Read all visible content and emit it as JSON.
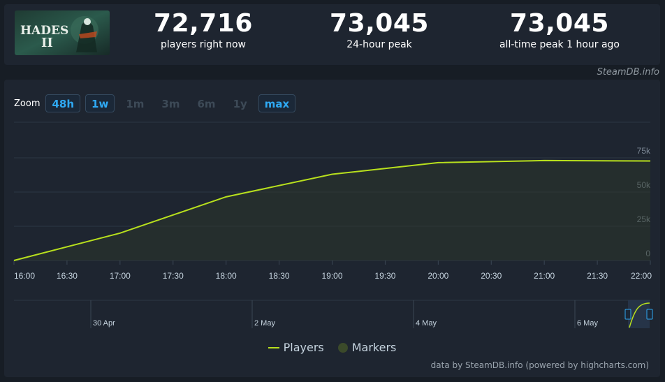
{
  "stats": {
    "current": {
      "value": "72,716",
      "label": "players right now"
    },
    "peak24": {
      "value": "73,045",
      "label": "24-hour peak"
    },
    "alltime": {
      "value": "73,045",
      "label": "all-time peak 1 hour ago"
    }
  },
  "game_logo": {
    "text": "HADES",
    "numeral": "II"
  },
  "steamdb_credit": "SteamDB.info",
  "zoom": {
    "label": "Zoom",
    "buttons": [
      {
        "label": "48h",
        "active": true
      },
      {
        "label": "1w",
        "active": true
      },
      {
        "label": "1m",
        "active": false
      },
      {
        "label": "3m",
        "active": false
      },
      {
        "label": "6m",
        "active": false
      },
      {
        "label": "1y",
        "active": false
      },
      {
        "label": "max",
        "active": true
      }
    ]
  },
  "legend": {
    "players": "Players",
    "markers": "Markers"
  },
  "data_credit": "data by SteamDB.info (powered by highcharts.com)",
  "colors": {
    "line": "#b8e01d",
    "accent": "#2fa9f3",
    "grid": "#2c3644"
  },
  "chart_data": {
    "type": "line",
    "series": [
      {
        "name": "Players",
        "x": [
          "16:00",
          "17:00",
          "18:00",
          "19:00",
          "20:00",
          "21:00",
          "22:00"
        ],
        "values": [
          0,
          20000,
          46500,
          63000,
          71500,
          73000,
          72716
        ]
      }
    ],
    "ylim": [
      0,
      75000
    ],
    "y_ticks": [
      "0",
      "25k",
      "50k",
      "75k"
    ],
    "x_ticks": [
      "16:00",
      "16:30",
      "17:00",
      "17:30",
      "18:00",
      "18:30",
      "19:00",
      "19:30",
      "20:00",
      "20:30",
      "21:00",
      "21:30",
      "22:00"
    ],
    "navigator_labels": [
      "30 Apr",
      "2 May",
      "4 May",
      "6 May"
    ],
    "grid": true,
    "legend_position": "bottom-center"
  }
}
